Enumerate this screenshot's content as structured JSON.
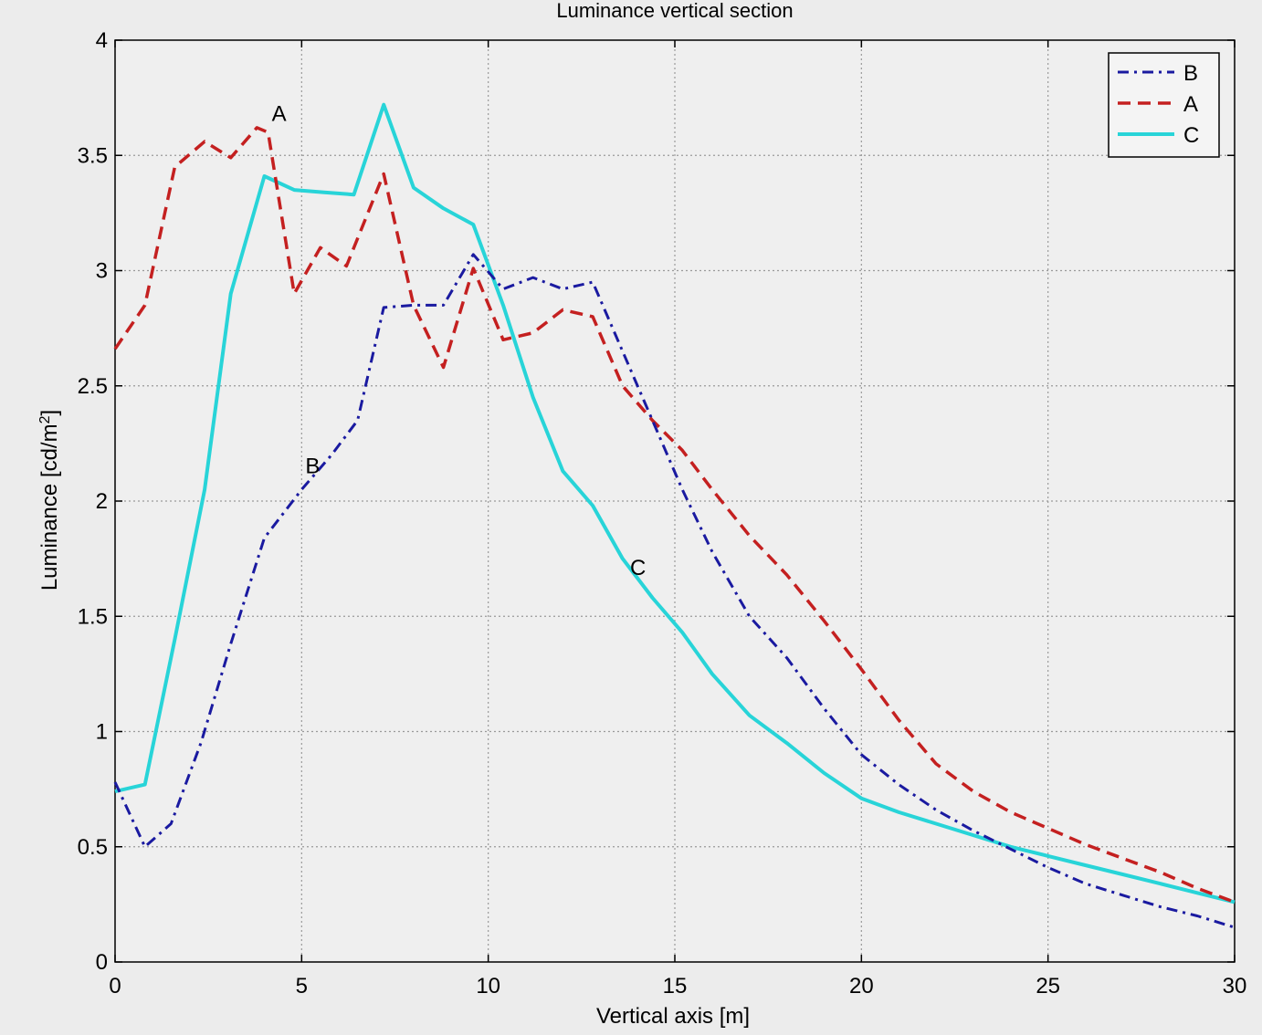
{
  "chart_data": {
    "type": "line",
    "title": "Luminance vertical section",
    "xlabel": "Vertical axis [m]",
    "ylabel_main": "Luminance [cd/m",
    "ylabel_sup": "2",
    "ylabel_close": "]",
    "xlim": [
      0,
      30
    ],
    "ylim": [
      0,
      4
    ],
    "xticks": [
      "0",
      "5",
      "10",
      "15",
      "20",
      "25",
      "30"
    ],
    "yticks": [
      "0",
      "0.5",
      "1",
      "1.5",
      "2",
      "2.5",
      "3",
      "3.5",
      "4"
    ],
    "grid": true,
    "legend_position": "top-right",
    "series": [
      {
        "name": "B",
        "color": "#1a1aa0",
        "style": "dashdot",
        "x": [
          0,
          0.8,
          1.5,
          2.3,
          3.1,
          4,
          5,
          5.8,
          6.5,
          7.2,
          8,
          8.8,
          9.6,
          10.4,
          11.2,
          12,
          12.8,
          13.6,
          14.4,
          15.2,
          16,
          17,
          18,
          19,
          20,
          21,
          22,
          23,
          24,
          25,
          26,
          27,
          28,
          29,
          30
        ],
        "y": [
          0.78,
          0.5,
          0.6,
          0.95,
          1.38,
          1.84,
          2.05,
          2.2,
          2.35,
          2.84,
          2.85,
          2.85,
          3.07,
          2.92,
          2.97,
          2.92,
          2.95,
          2.65,
          2.35,
          2.05,
          1.78,
          1.5,
          1.32,
          1.1,
          0.9,
          0.77,
          0.66,
          0.57,
          0.49,
          0.41,
          0.34,
          0.29,
          0.24,
          0.2,
          0.15
        ]
      },
      {
        "name": "A",
        "color": "#c42020",
        "style": "dashed",
        "x": [
          0,
          0.8,
          1.6,
          2.4,
          3.1,
          3.8,
          4.1,
          4.8,
          5.5,
          6.2,
          7.2,
          8,
          8.8,
          9.6,
          10.4,
          11.2,
          12,
          12.8,
          13.6,
          14.4,
          15.2,
          16,
          17,
          18,
          19,
          20,
          21,
          22,
          23,
          24,
          25,
          26,
          27,
          28,
          29,
          30
        ],
        "y": [
          2.66,
          2.85,
          3.45,
          3.56,
          3.49,
          3.62,
          3.6,
          2.9,
          3.1,
          3.02,
          3.42,
          2.85,
          2.58,
          3.01,
          2.7,
          2.73,
          2.83,
          2.8,
          2.5,
          2.35,
          2.22,
          2.05,
          1.85,
          1.68,
          1.48,
          1.27,
          1.05,
          0.86,
          0.74,
          0.65,
          0.58,
          0.51,
          0.45,
          0.39,
          0.32,
          0.26
        ]
      },
      {
        "name": "C",
        "color": "#28d4d8",
        "style": "solid",
        "x": [
          0,
          0.8,
          1.6,
          2.4,
          3.1,
          4,
          4.8,
          5.6,
          6.4,
          7.2,
          8,
          8.8,
          9.6,
          10.4,
          11.2,
          12,
          12.8,
          13.6,
          14.4,
          15.2,
          16,
          17,
          18,
          19,
          20,
          21,
          22,
          23,
          24,
          25,
          26,
          27,
          28,
          29,
          30
        ],
        "y": [
          0.74,
          0.77,
          1.4,
          2.05,
          2.9,
          3.41,
          3.35,
          3.34,
          3.33,
          3.72,
          3.36,
          3.27,
          3.2,
          2.85,
          2.45,
          2.13,
          1.98,
          1.75,
          1.58,
          1.43,
          1.25,
          1.07,
          0.95,
          0.82,
          0.71,
          0.65,
          0.6,
          0.55,
          0.5,
          0.46,
          0.42,
          0.38,
          0.34,
          0.3,
          0.26
        ]
      }
    ],
    "annotations": [
      {
        "text": "A",
        "x": 4.2,
        "y": 3.65
      },
      {
        "text": "B",
        "x": 5.1,
        "y": 2.12
      },
      {
        "text": "C",
        "x": 13.8,
        "y": 1.68
      }
    ]
  }
}
